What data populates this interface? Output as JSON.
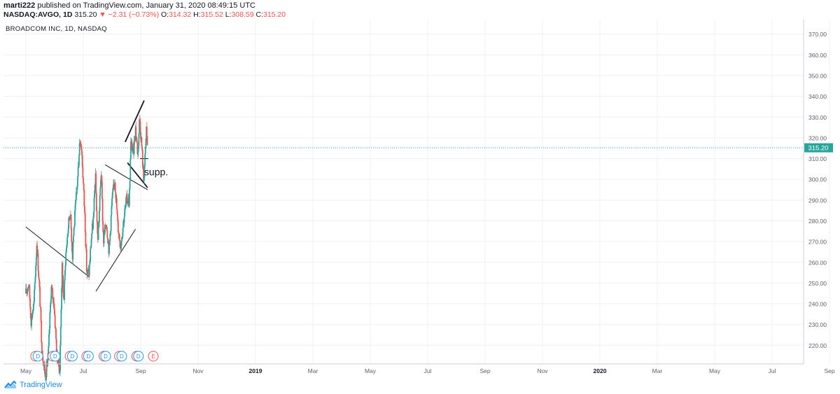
{
  "header": {
    "author": "marti222",
    "published_text": "published on TradingView.com, January 31, 2020 08:49:15 UTC",
    "symbol": "NASDAQ:AVGO, 1D",
    "price": "315.20",
    "change": "▼ −2.31 (−0.73%)",
    "open_label": "O:",
    "open": "314.32",
    "high_label": "H:",
    "high": "315.52",
    "low_label": "L:",
    "low": "308.59",
    "close_label": "C:",
    "close": "315.20"
  },
  "footer": {
    "brand": "TradingView",
    "logo_icon": "tradingview-logo-icon"
  },
  "colors": {
    "up": "#26a69a",
    "down": "#ef5350",
    "price_line": "#26a69a",
    "event": "#ef5350",
    "dividend": "#2196f3",
    "grid": "#eef0f3"
  },
  "chart_data": {
    "type": "candlestick",
    "title": "BROADCOM INC, 1D, NASDAQ",
    "ylim": [
      211,
      377
    ],
    "y_ticks": [
      "370.00",
      "360.00",
      "350.00",
      "340.00",
      "330.00",
      "320.00",
      "310.00",
      "300.00",
      "290.00",
      "280.00",
      "270.00",
      "260.00",
      "250.00",
      "240.00",
      "230.00",
      "220.00"
    ],
    "x_ticks": [
      "May",
      "Jul",
      "Sep",
      "Nov",
      "2019",
      "Mar",
      "May",
      "Jul",
      "Sep",
      "Nov",
      "2020",
      "Mar",
      "May",
      "Jul",
      "Sep"
    ],
    "bold_x_ticks": [
      "2019",
      "2020"
    ],
    "last_price": 315.2,
    "last_price_label": "315.20",
    "grid": true,
    "price_path": [
      {
        "t": 0.0,
        "p": 245
      },
      {
        "t": 0.05,
        "p": 250
      },
      {
        "t": 0.09,
        "p": 232
      },
      {
        "t": 0.14,
        "p": 240
      },
      {
        "t": 0.19,
        "p": 270
      },
      {
        "t": 0.24,
        "p": 245
      },
      {
        "t": 0.28,
        "p": 218
      },
      {
        "t": 0.34,
        "p": 205
      },
      {
        "t": 0.39,
        "p": 215
      },
      {
        "t": 0.44,
        "p": 248
      },
      {
        "t": 0.49,
        "p": 240
      },
      {
        "t": 0.54,
        "p": 215
      },
      {
        "t": 0.59,
        "p": 208
      },
      {
        "t": 0.63,
        "p": 258
      },
      {
        "t": 0.66,
        "p": 240
      },
      {
        "t": 0.69,
        "p": 262
      },
      {
        "t": 0.73,
        "p": 275
      },
      {
        "t": 0.77,
        "p": 285
      },
      {
        "t": 0.8,
        "p": 270
      },
      {
        "t": 0.81,
        "p": 262
      },
      {
        "t": 0.82,
        "p": 270
      },
      {
        "t": 0.86,
        "p": 285
      },
      {
        "t": 0.9,
        "p": 300
      },
      {
        "t": 0.94,
        "p": 320
      },
      {
        "t": 0.97,
        "p": 315
      },
      {
        "t": 1.0,
        "p": 298
      },
      {
        "t": 1.03,
        "p": 280
      },
      {
        "t": 1.06,
        "p": 255
      },
      {
        "t": 1.1,
        "p": 255
      },
      {
        "t": 1.14,
        "p": 272
      },
      {
        "t": 1.18,
        "p": 282
      },
      {
        "t": 1.21,
        "p": 303
      },
      {
        "t": 1.25,
        "p": 270
      },
      {
        "t": 1.28,
        "p": 285
      },
      {
        "t": 1.31,
        "p": 305
      },
      {
        "t": 1.35,
        "p": 270
      },
      {
        "t": 1.4,
        "p": 280
      },
      {
        "t": 1.45,
        "p": 265
      },
      {
        "t": 1.5,
        "p": 290
      },
      {
        "t": 1.55,
        "p": 300
      },
      {
        "t": 1.6,
        "p": 278
      },
      {
        "t": 1.65,
        "p": 268
      },
      {
        "t": 1.7,
        "p": 280
      },
      {
        "t": 1.75,
        "p": 290
      },
      {
        "t": 1.8,
        "p": 290
      },
      {
        "t": 1.83,
        "p": 318
      },
      {
        "t": 1.87,
        "p": 312
      },
      {
        "t": 1.91,
        "p": 325
      },
      {
        "t": 1.95,
        "p": 312
      },
      {
        "t": 1.98,
        "p": 330
      },
      {
        "t": 2.02,
        "p": 315
      },
      {
        "t": 2.05,
        "p": 300
      },
      {
        "t": 2.08,
        "p": 312
      },
      {
        "t": 2.1,
        "p": 325
      },
      {
        "t": 2.12,
        "p": 315
      }
    ],
    "events": [
      {
        "t": 0.17,
        "type": "earnings",
        "label": "E"
      },
      {
        "t": 0.21,
        "type": "dividend",
        "label": "D"
      },
      {
        "t": 0.47,
        "type": "earnings",
        "label": "E"
      },
      {
        "t": 0.51,
        "type": "dividend",
        "label": "D"
      },
      {
        "t": 0.77,
        "type": "earnings",
        "label": "E"
      },
      {
        "t": 0.81,
        "type": "dividend",
        "label": "D"
      },
      {
        "t": 1.06,
        "type": "earnings",
        "label": "E"
      },
      {
        "t": 1.09,
        "type": "dividend",
        "label": "D"
      },
      {
        "t": 1.36,
        "type": "earnings",
        "label": "E"
      },
      {
        "t": 1.39,
        "type": "dividend",
        "label": "D"
      },
      {
        "t": 1.63,
        "type": "earnings",
        "label": "E"
      },
      {
        "t": 1.67,
        "type": "dividend",
        "label": "D"
      },
      {
        "t": 1.93,
        "type": "earnings",
        "label": "E"
      },
      {
        "t": 1.96,
        "type": "dividend",
        "label": "D"
      },
      {
        "t": 2.22,
        "type": "earnings",
        "label": "E"
      }
    ],
    "trendlines": [
      {
        "t1": 0.0,
        "p1": 277,
        "t2": 1.1,
        "p2": 253,
        "width": 1
      },
      {
        "t1": 1.22,
        "p1": 246,
        "t2": 1.91,
        "p2": 276,
        "width": 1
      },
      {
        "t1": 1.38,
        "p1": 307,
        "t2": 2.12,
        "p2": 295,
        "width": 1
      },
      {
        "t1": 1.73,
        "p1": 318,
        "t2": 2.06,
        "p2": 338,
        "width": 1.8
      },
      {
        "t1": 1.77,
        "p1": 308,
        "t2": 2.12,
        "p2": 296,
        "width": 1.8
      },
      {
        "t1": 1.99,
        "p1": 310,
        "t2": 2.13,
        "p2": 310,
        "width": 1.2
      }
    ],
    "annotations": [
      {
        "text": "supp.",
        "t": 2.06,
        "p": 302
      }
    ]
  }
}
